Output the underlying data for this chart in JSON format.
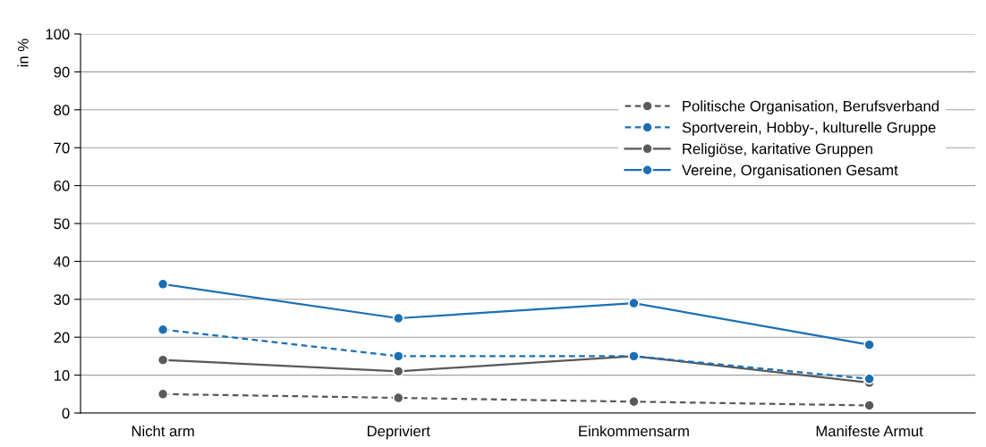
{
  "chart_data": {
    "type": "line",
    "ylabel": "in %",
    "categories": [
      "Nicht arm",
      "Depriviert",
      "Einkommensarm",
      "Manifeste Armut"
    ],
    "series": [
      {
        "name": "Politische Organisation, Berufsverband",
        "color": "#595959",
        "line_style": "dashed",
        "values": [
          5,
          4,
          3,
          2
        ]
      },
      {
        "name": "Sportverein, Hobby-, kulturelle Gruppe",
        "color": "#1a6fb5",
        "line_style": "dashed",
        "values": [
          22,
          15,
          15,
          9
        ]
      },
      {
        "name": "Religiöse, karitative Gruppen",
        "color": "#595959",
        "line_style": "solid",
        "values": [
          14,
          11,
          15,
          8
        ]
      },
      {
        "name": "Vereine, Organisationen Gesamt",
        "color": "#1a6fb5",
        "line_style": "solid",
        "values": [
          34,
          25,
          29,
          18
        ]
      }
    ],
    "ylim": [
      0,
      100
    ],
    "yticks": [
      0,
      10,
      20,
      30,
      40,
      50,
      60,
      70,
      80,
      90,
      100
    ],
    "grid": "y",
    "legend": "top right",
    "marker": "circle"
  }
}
